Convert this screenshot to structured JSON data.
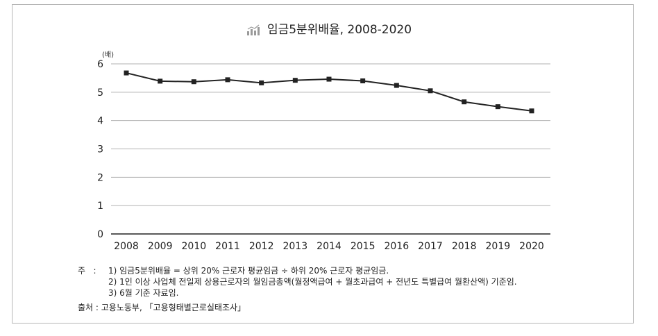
{
  "chart_data": {
    "type": "line",
    "title": "임금5분위배율, 2008-2020",
    "ylabel": "(배)",
    "xlabel": "",
    "categories": [
      "2008",
      "2009",
      "2010",
      "2011",
      "2012",
      "2013",
      "2014",
      "2015",
      "2016",
      "2017",
      "2018",
      "2019",
      "2020"
    ],
    "series": [
      {
        "values": [
          5.68,
          5.39,
          5.37,
          5.44,
          5.33,
          5.42,
          5.46,
          5.4,
          5.24,
          5.05,
          4.66,
          4.49,
          4.34
        ]
      }
    ],
    "ylim": [
      0,
      6
    ],
    "yticks": [
      "0",
      "1",
      "2",
      "3",
      "4",
      "5",
      "6"
    ],
    "grid": true,
    "legend": "none"
  },
  "title_icon": "bar-chart-icon",
  "notes": {
    "label": "주",
    "colon": ":",
    "items": [
      "1) 임금5분위배율 = 상위 20% 근로자 평균임금 ÷ 하위 20% 근로자 평균임금.",
      "2) 1인 이상 사업체 전일제 상용근로자의 월임금총액(월정액급여 + 월초과급여 + 전년도 특별급여 월환산액) 기준임.",
      "3) 6월 기준 자료임."
    ]
  },
  "source": "출처 : 고용노동부, 「고용형태별근로실태조사」",
  "colors": {
    "line": "#222222",
    "grid": "#b0b0b0",
    "axis": "#222222"
  }
}
